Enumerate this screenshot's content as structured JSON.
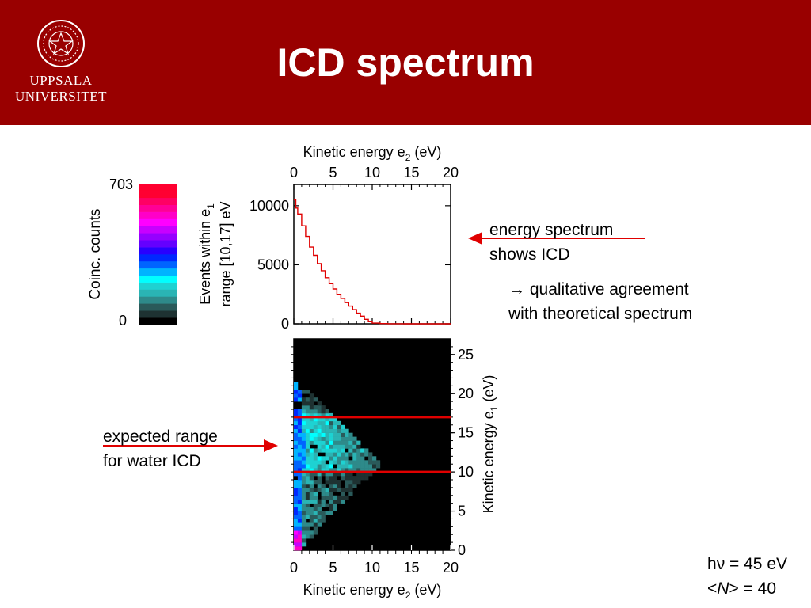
{
  "header": {
    "title": "ICD spectrum",
    "logo_line1": "UPPSALA",
    "logo_line2": "UNIVERSITET",
    "background": "#990000"
  },
  "notes": {
    "energy_line1": "energy spectrum",
    "energy_line2": "shows ICD",
    "qual_arrow": "→",
    "qual_line1": " qualitative agreement",
    "qual_line2": "with theoretical spectrum",
    "expected_line1": "expected range",
    "expected_line2": "for water ICD",
    "params_h": "h",
    "params_nu": "ν",
    "params_energy": " = 45 eV",
    "params_lt": "<",
    "params_N": "N",
    "params_gt_value": "> = 40"
  },
  "chart_data": [
    {
      "type": "heatmap",
      "role": "colorbar",
      "label": "Coinc. counts",
      "min_label": "0",
      "max_label": "703",
      "range": [
        0,
        703
      ],
      "colors": [
        "#000000",
        "#1e3232",
        "#2a5a5a",
        "#2e8a8a",
        "#2ab4b4",
        "#1ed2d2",
        "#00ffff",
        "#00b4ff",
        "#0064ff",
        "#0028ff",
        "#2800ff",
        "#6400ff",
        "#9600ff",
        "#c800ff",
        "#ff00ff",
        "#ff00c8",
        "#ff0096",
        "#ff0064",
        "#ff0032",
        "#ff0030"
      ]
    },
    {
      "type": "line",
      "xlabel_main": "Kinetic energy e",
      "xlabel_sub": "2",
      "xlabel_unit": " (eV)",
      "ylabel_line1_main": "Events within e",
      "ylabel_line1_sub": "1",
      "ylabel_line2": "range [10,17] eV",
      "xlim": [
        0,
        20
      ],
      "ylim": [
        0,
        11800
      ],
      "xticks": [
        "0",
        "5",
        "10",
        "15",
        "20"
      ],
      "yticks": [
        "0",
        "5000",
        "10000"
      ],
      "color": "#e00000",
      "series": [
        {
          "x": [
            0,
            0.25,
            0.5,
            1,
            1.5,
            2,
            2.5,
            3,
            3.5,
            4,
            4.5,
            5,
            5.5,
            6,
            6.5,
            7,
            7.5,
            8,
            8.5,
            9,
            9.5,
            10,
            11,
            12,
            13,
            14,
            15,
            16,
            17,
            18,
            19,
            20
          ],
          "y": [
            10500,
            9800,
            9300,
            8300,
            7400,
            6500,
            5800,
            5100,
            4500,
            3900,
            3400,
            2950,
            2500,
            2150,
            1800,
            1500,
            1200,
            900,
            650,
            380,
            180,
            60,
            20,
            10,
            5,
            0,
            0,
            0,
            0,
            0,
            0,
            0
          ]
        }
      ]
    },
    {
      "type": "heatmap",
      "xlabel_main": "Kinetic energy e",
      "xlabel_sub": "2",
      "xlabel_unit": " (eV)",
      "ylabel_main": "Kinetic energy e",
      "ylabel_sub": "1",
      "ylabel_unit": " (eV)",
      "xlim": [
        0,
        20
      ],
      "ylim": [
        0,
        27
      ],
      "xticks": [
        "0",
        "5",
        "10",
        "15",
        "20"
      ],
      "yticks": [
        "0",
        "5",
        "10",
        "15",
        "20",
        "25"
      ],
      "description_region": "triangular coincidence region, e1 + e2 up to about 22 eV",
      "hlines": [
        10,
        17
      ],
      "hline_color": "#e00000"
    }
  ]
}
